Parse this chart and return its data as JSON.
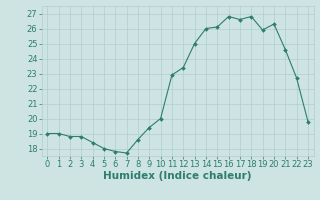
{
  "x": [
    0,
    1,
    2,
    3,
    4,
    5,
    6,
    7,
    8,
    9,
    10,
    11,
    12,
    13,
    14,
    15,
    16,
    17,
    18,
    19,
    20,
    21,
    22,
    23
  ],
  "y": [
    19.0,
    19.0,
    18.8,
    18.8,
    18.4,
    18.0,
    17.8,
    17.7,
    18.6,
    19.4,
    20.0,
    22.9,
    23.4,
    25.0,
    26.0,
    26.1,
    26.8,
    26.6,
    26.8,
    25.9,
    26.3,
    24.6,
    22.7,
    19.8
  ],
  "line_color": "#2e7d6e",
  "marker": "D",
  "marker_size": 2.0,
  "bg_color": "#cde4e3",
  "grid_color": "#b0cece",
  "xlabel": "Humidex (Indice chaleur)",
  "xlim": [
    -0.5,
    23.5
  ],
  "ylim": [
    17.5,
    27.5
  ],
  "yticks": [
    18,
    19,
    20,
    21,
    22,
    23,
    24,
    25,
    26,
    27
  ],
  "xticks": [
    0,
    1,
    2,
    3,
    4,
    5,
    6,
    7,
    8,
    9,
    10,
    11,
    12,
    13,
    14,
    15,
    16,
    17,
    18,
    19,
    20,
    21,
    22,
    23
  ],
  "tick_label_size": 6.0,
  "xlabel_size": 7.5
}
